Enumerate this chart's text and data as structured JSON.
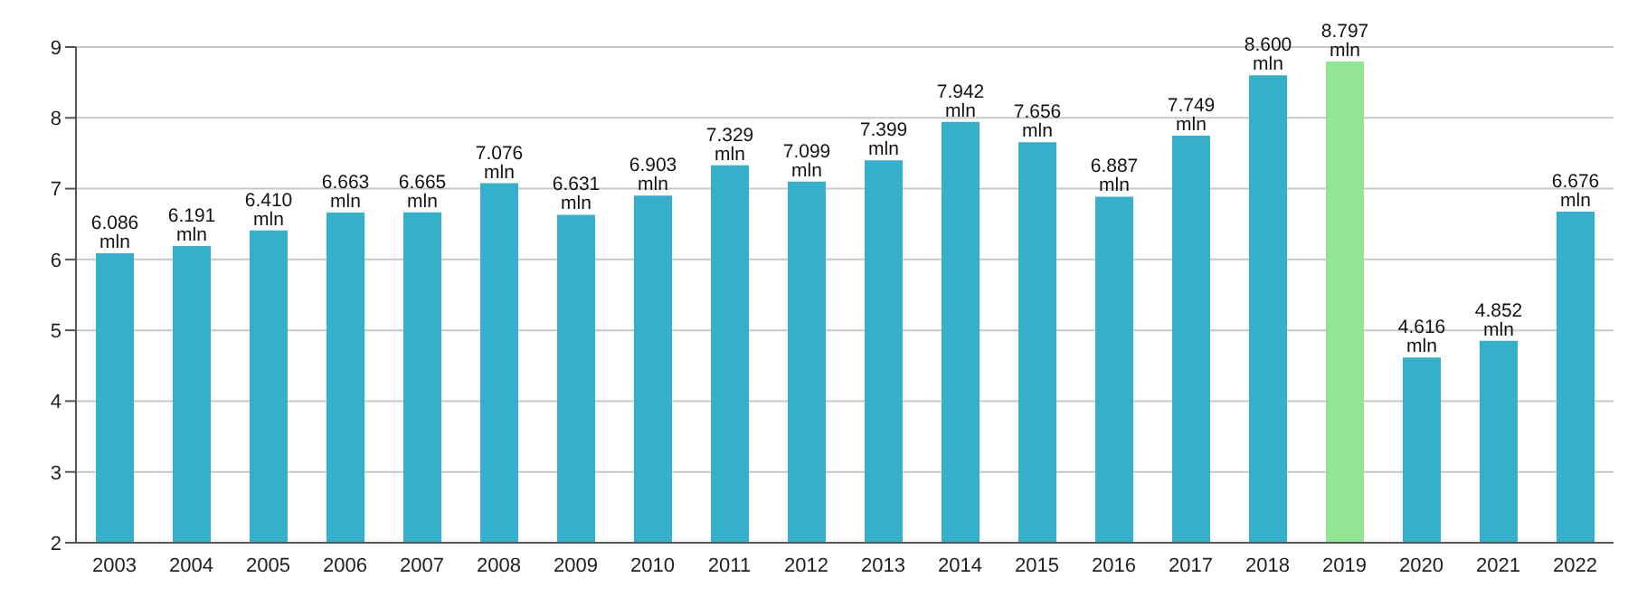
{
  "chart_data": {
    "type": "bar",
    "categories": [
      "2003",
      "2004",
      "2005",
      "2006",
      "2007",
      "2008",
      "2009",
      "2010",
      "2011",
      "2012",
      "2013",
      "2014",
      "2015",
      "2016",
      "2017",
      "2018",
      "2019",
      "2020",
      "2021",
      "2022"
    ],
    "values": [
      6.086,
      6.191,
      6.41,
      6.663,
      6.665,
      7.076,
      6.631,
      6.903,
      7.329,
      7.099,
      7.399,
      7.942,
      7.656,
      6.887,
      7.749,
      8.6,
      8.797,
      4.616,
      4.852,
      6.676
    ],
    "value_labels": [
      "6.086 mln",
      "6.191 mln",
      "6.410 mln",
      "6.663 mln",
      "6.665 mln",
      "7.076 mln",
      "6.631 mln",
      "6.903 mln",
      "7.329 mln",
      "7.099 mln",
      "7.399 mln",
      "7.942 mln",
      "7.656 mln",
      "6.887 mln",
      "7.749 mln",
      "8.600 mln",
      "8.797 mln",
      "4.616 mln",
      "4.852 mln",
      "6.676 mln"
    ],
    "colors": [
      "#35b0cb",
      "#35b0cb",
      "#35b0cb",
      "#35b0cb",
      "#35b0cb",
      "#35b0cb",
      "#35b0cb",
      "#35b0cb",
      "#35b0cb",
      "#35b0cb",
      "#35b0cb",
      "#35b0cb",
      "#35b0cb",
      "#35b0cb",
      "#35b0cb",
      "#35b0cb",
      "#92e592",
      "#35b0cb",
      "#35b0cb",
      "#35b0cb"
    ],
    "ylim": [
      2,
      9
    ],
    "yticks": [
      2,
      3,
      4,
      5,
      6,
      7,
      8,
      9
    ],
    "grid": "y",
    "legend": false
  }
}
